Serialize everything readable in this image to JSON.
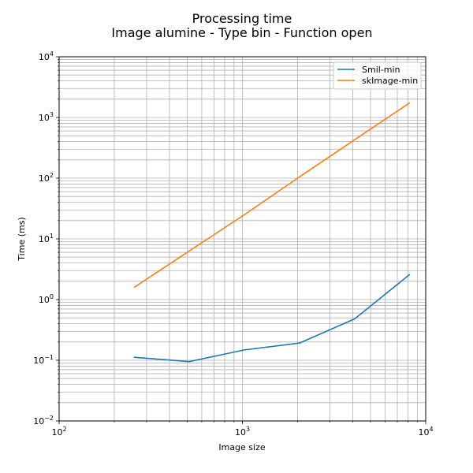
{
  "chart_data": {
    "type": "line",
    "title": "Processing time",
    "subtitle": "Image alumine - Type bin - Function open",
    "xlabel": "Image size",
    "ylabel": "Time (ms)",
    "xscale": "log",
    "yscale": "log",
    "xlim": [
      100,
      10000
    ],
    "ylim": [
      0.01,
      10000
    ],
    "grid": true,
    "legend_position": "top-right",
    "x_ticks": [
      {
        "base": "10",
        "exp": "2",
        "value": 100
      },
      {
        "base": "10",
        "exp": "3",
        "value": 1000
      },
      {
        "base": "10",
        "exp": "4",
        "value": 10000
      }
    ],
    "y_ticks": [
      {
        "base": "10",
        "exp": "−2",
        "value": 0.01
      },
      {
        "base": "10",
        "exp": "−1",
        "value": 0.1
      },
      {
        "base": "10",
        "exp": "0",
        "value": 1
      },
      {
        "base": "10",
        "exp": "1",
        "value": 10
      },
      {
        "base": "10",
        "exp": "2",
        "value": 100
      },
      {
        "base": "10",
        "exp": "3",
        "value": 1000
      },
      {
        "base": "10",
        "exp": "4",
        "value": 10000
      }
    ],
    "series": [
      {
        "name": "Smil-min",
        "color": "#1f77b4",
        "x": [
          256,
          512,
          1024,
          2048,
          4096,
          8192
        ],
        "values": [
          0.112,
          0.095,
          0.148,
          0.192,
          0.48,
          2.6
        ]
      },
      {
        "name": "skImage-min",
        "color": "#ff7f0e",
        "x": [
          256,
          512,
          1024,
          2048,
          4096,
          8192
        ],
        "values": [
          1.58,
          6.3,
          25,
          105,
          430,
          1750
        ]
      }
    ]
  }
}
